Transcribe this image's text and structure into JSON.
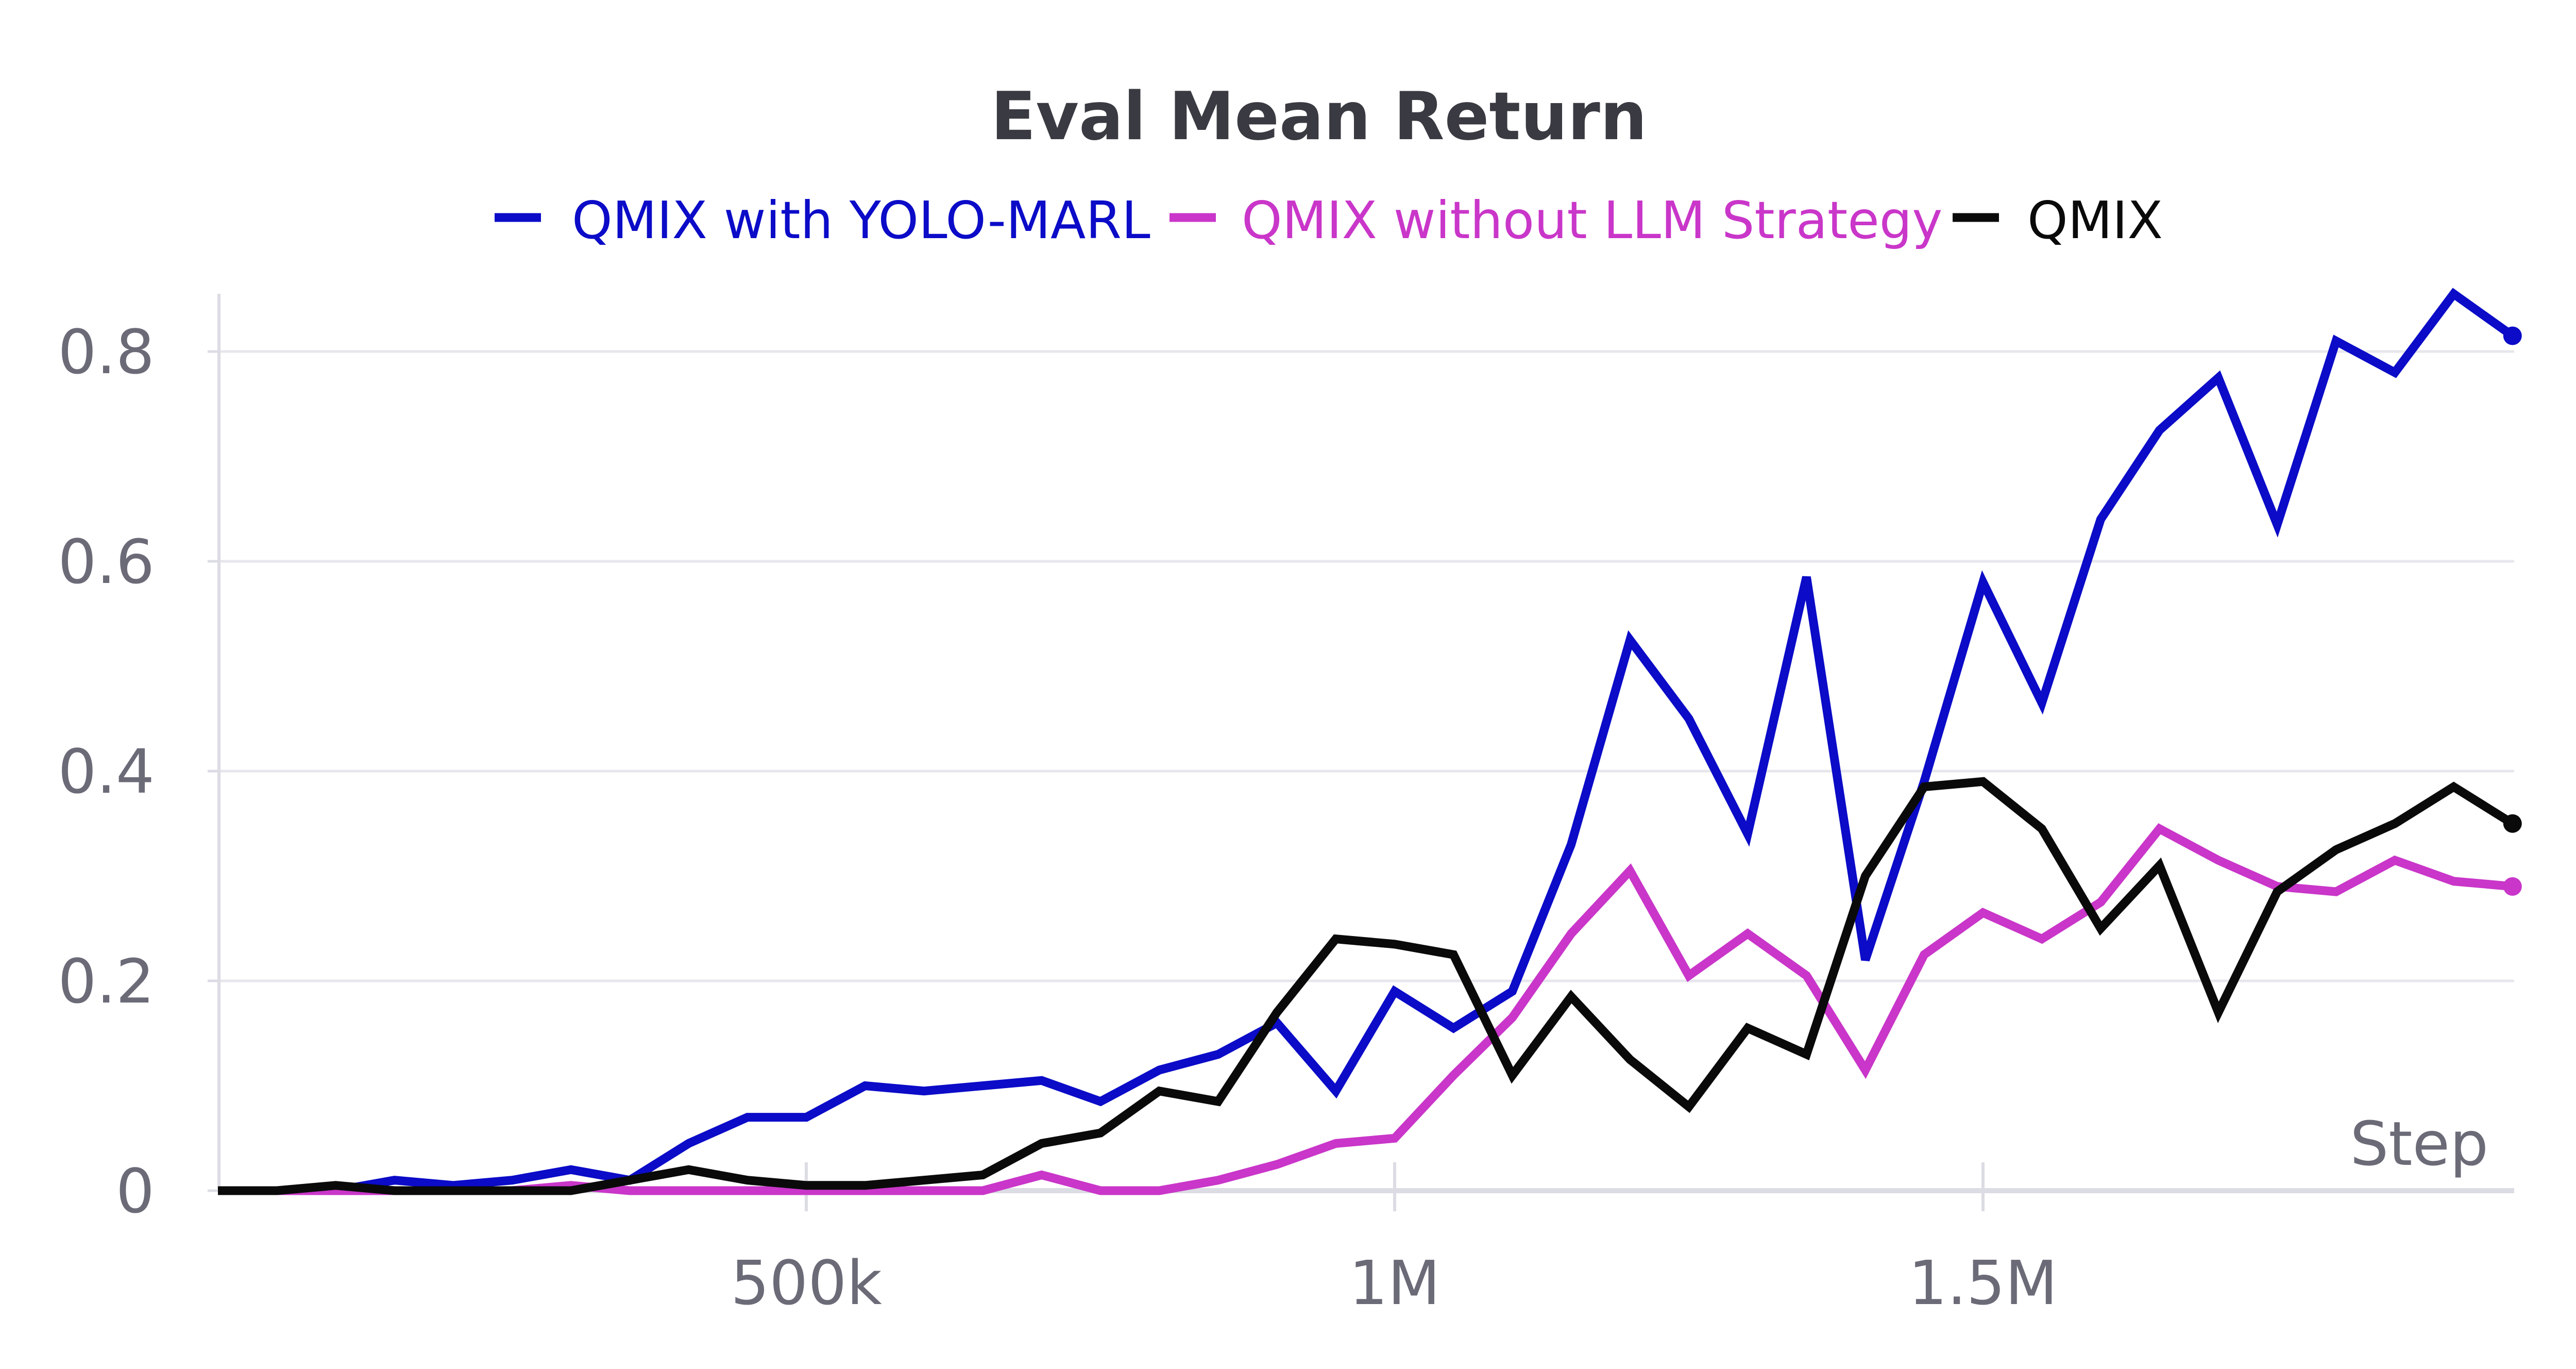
{
  "chart_data": {
    "type": "line",
    "title": "Eval Mean Return",
    "xlabel": "Step",
    "ylabel": "",
    "xlim": [
      0,
      1950000
    ],
    "ylim": [
      0,
      0.85
    ],
    "x_ticks": [
      500000,
      1000000,
      1500000
    ],
    "x_tick_labels": [
      "500k",
      "1M",
      "1.5M"
    ],
    "y_ticks": [
      0,
      0.2,
      0.4,
      0.6,
      0.8
    ],
    "y_tick_labels": [
      "0",
      "0.2",
      "0.4",
      "0.6",
      "0.8"
    ],
    "grid": true,
    "legend_position": "top",
    "x": [
      0,
      50000,
      100000,
      150000,
      200000,
      250000,
      300000,
      350000,
      400000,
      450000,
      500000,
      550000,
      600000,
      650000,
      700000,
      750000,
      800000,
      850000,
      900000,
      950000,
      1000000,
      1050000,
      1100000,
      1150000,
      1200000,
      1250000,
      1300000,
      1350000,
      1400000,
      1450000,
      1500000,
      1550000,
      1600000,
      1650000,
      1700000,
      1750000,
      1800000,
      1850000,
      1900000,
      1950000
    ],
    "series": [
      {
        "name": "QMIX with YOLO-MARL",
        "color": "#0b0bc8",
        "values": [
          0,
          0,
          0,
          0.01,
          0.005,
          0.01,
          0.02,
          0.01,
          0.045,
          0.07,
          0.07,
          0.1,
          0.095,
          0.1,
          0.105,
          0.085,
          0.115,
          0.13,
          0.16,
          0.095,
          0.19,
          0.155,
          0.19,
          0.33,
          0.525,
          0.45,
          0.34,
          0.585,
          0.22,
          0.39,
          0.58,
          0.465,
          0.64,
          0.725,
          0.775,
          0.635,
          0.81,
          0.78,
          0.855,
          0.815
        ]
      },
      {
        "name": "QMIX without LLM Strategy",
        "color": "#c936c9",
        "values": [
          0,
          0,
          0,
          0,
          0,
          0,
          0.005,
          0,
          0,
          0,
          0,
          0,
          0,
          0,
          0.015,
          0,
          0,
          0.01,
          0.025,
          0.045,
          0.05,
          0.11,
          0.165,
          0.245,
          0.305,
          0.205,
          0.245,
          0.205,
          0.115,
          0.225,
          0.265,
          0.24,
          0.275,
          0.345,
          0.315,
          0.29,
          0.285,
          0.315,
          0.295,
          0.29
        ]
      },
      {
        "name": "QMIX",
        "color": "#0a0a0a",
        "values": [
          0,
          0,
          0.005,
          0,
          0,
          0,
          0,
          0.01,
          0.02,
          0.01,
          0.005,
          0.005,
          0.01,
          0.015,
          0.045,
          0.055,
          0.095,
          0.085,
          0.17,
          0.24,
          0.235,
          0.225,
          0.11,
          0.185,
          0.125,
          0.08,
          0.155,
          0.13,
          0.3,
          0.385,
          0.39,
          0.345,
          0.25,
          0.31,
          0.17,
          0.285,
          0.325,
          0.35,
          0.385,
          0.35
        ]
      }
    ]
  }
}
